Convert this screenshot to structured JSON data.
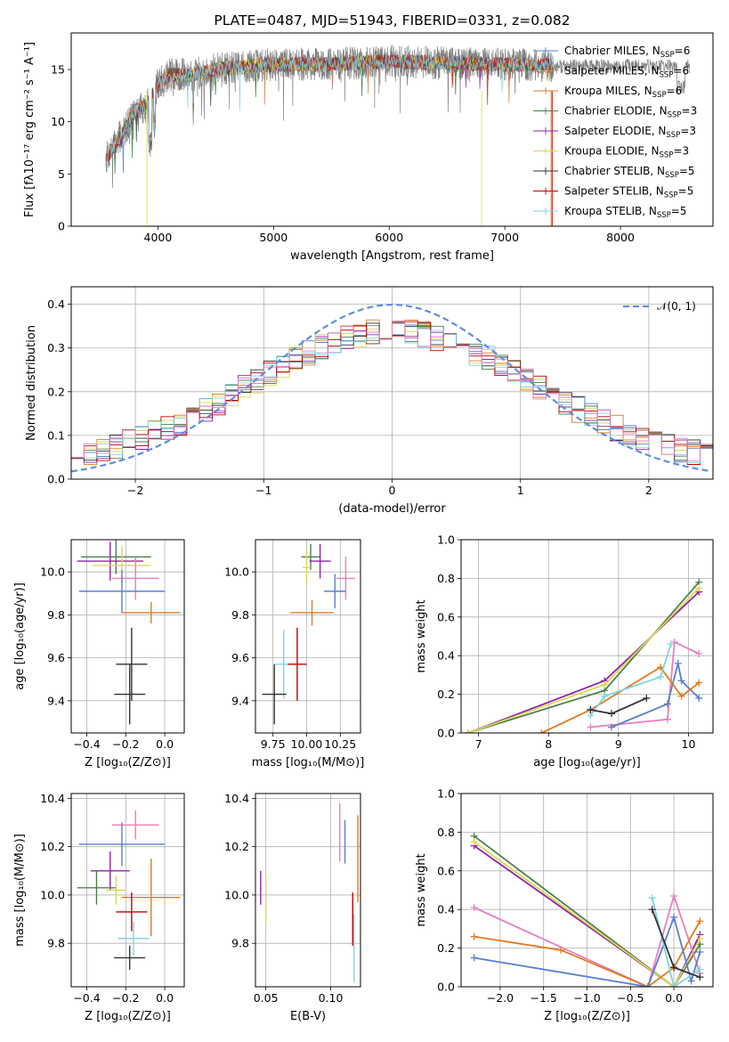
{
  "chart_data": [
    {
      "id": "spectrum",
      "type": "line",
      "title": "PLATE=0487, MJD=51943, FIBERID=0331, z=0.082",
      "xlabel": "wavelength [Angstrom, rest frame]",
      "ylabel": "Flux [fλ10⁻¹⁷ erg cm⁻² s⁻¹ A⁻¹]",
      "xlim": [
        3250,
        8800
      ],
      "ylim": [
        0,
        18.5
      ],
      "xticks": [
        4000,
        5000,
        6000,
        7000,
        8000
      ],
      "yticks": [
        0,
        5,
        10,
        15
      ],
      "grid": false,
      "legend_position": "right",
      "data_color": "#808080",
      "model_colors": [
        "#4878cf",
        "#dd8452",
        "#e87a2a",
        "#2e7d32",
        "#8e24aa",
        "#e2e84a",
        "#444444",
        "#c62828",
        "#80d4e0"
      ],
      "legend": [
        {
          "label": "Chabrier MILES, N",
          "sub": "SSP",
          "eq": "=6",
          "color": "#5a7fd0"
        },
        {
          "label": "Salpeter MILES, N",
          "sub": "SSP",
          "eq": "=6",
          "color": "#e89a6a"
        },
        {
          "label": "Kroupa MILES, N",
          "sub": "SSP",
          "eq": "=6",
          "color": "#e07b1f"
        },
        {
          "label": "Chabrier ELODIE, N",
          "sub": "SSP",
          "eq": "=3",
          "color": "#4f7f4f"
        },
        {
          "label": "Salpeter ELODIE, N",
          "sub": "SSP",
          "eq": "=3",
          "color": "#8e24aa"
        },
        {
          "label": "Kroupa ELODIE, N",
          "sub": "SSP",
          "eq": "=3",
          "color": "#dada50"
        },
        {
          "label": "Chabrier STELIB, N",
          "sub": "SSP",
          "eq": "=5",
          "color": "#333333"
        },
        {
          "label": "Salpeter STELIB, N",
          "sub": "SSP",
          "eq": "=5",
          "color": "#c00000"
        },
        {
          "label": "Kroupa STELIB, N",
          "sub": "SSP",
          "eq": "=5",
          "color": "#7fd1dd"
        }
      ],
      "continuum_anchors": {
        "x": [
          3550,
          3700,
          3800,
          3900,
          4000,
          4100,
          4300,
          4500,
          5000,
          5500,
          6000,
          6500,
          7000,
          7400
        ],
        "y": [
          6.5,
          9.0,
          11.0,
          11.5,
          13.5,
          14.5,
          14.5,
          15.0,
          15.5,
          15.5,
          15.8,
          15.6,
          15.5,
          15.4
        ]
      }
    },
    {
      "id": "residuals",
      "type": "histogram",
      "xlabel": "(data-model)/error",
      "ylabel": "Normed distribution",
      "xlim": [
        -2.5,
        2.5
      ],
      "ylim": [
        0,
        0.44
      ],
      "xticks": [
        -2,
        -1,
        0,
        1,
        2
      ],
      "yticks": [
        0.0,
        0.1,
        0.2,
        0.3,
        0.4
      ],
      "grid": true,
      "legend_position": "top-right",
      "legend": [
        {
          "label": "𝒩(0, 1)",
          "color": "#5f8fd8",
          "style": "dashed"
        }
      ],
      "normal": {
        "mean": 0,
        "sigma": 1
      }
    },
    {
      "id": "age_vs_Z",
      "type": "errorbar",
      "xlabel": "Z [log₁₀(Z/Z⊙)]",
      "ylabel": "age  [log₁₀(age/yr)]",
      "xlim": [
        -0.48,
        0.1
      ],
      "ylim": [
        9.25,
        10.15
      ],
      "xticks": [
        -0.4,
        -0.2,
        0.0
      ],
      "yticks": [
        9.4,
        9.6,
        9.8,
        10.0
      ],
      "grid": true,
      "points": [
        {
          "x": -0.25,
          "y": 10.07,
          "xerr": 0.18,
          "yerr": 0.08,
          "color": "#4f7f4f"
        },
        {
          "x": -0.28,
          "y": 10.05,
          "xerr": 0.17,
          "yerr": 0.09,
          "color": "#8e24aa"
        },
        {
          "x": -0.22,
          "y": 10.03,
          "xerr": 0.15,
          "yerr": 0.09,
          "color": "#dada50"
        },
        {
          "x": -0.15,
          "y": 9.97,
          "xerr": 0.12,
          "yerr": 0.1,
          "color": "#e87fc0"
        },
        {
          "x": -0.22,
          "y": 9.91,
          "xerr": 0.22,
          "yerr": 0.1,
          "color": "#5a7fd0"
        },
        {
          "x": -0.07,
          "y": 9.81,
          "xerr": 0.15,
          "yerr": 0.05,
          "color": "#e07b1f"
        },
        {
          "x": -0.17,
          "y": 9.57,
          "xerr": 0.08,
          "yerr": 0.17,
          "color": "#333333"
        },
        {
          "x": -0.18,
          "y": 9.43,
          "xerr": 0.08,
          "yerr": 0.14,
          "color": "#333333"
        }
      ]
    },
    {
      "id": "age_vs_mass",
      "type": "errorbar",
      "xlabel": "mass [log₁₀(M/M⊙)]",
      "ylabel": "",
      "xlim": [
        9.62,
        10.4
      ],
      "ylim": [
        9.25,
        10.15
      ],
      "xticks": [
        9.75,
        10.0,
        10.25
      ],
      "xticklabels": [
        "9.75",
        "10.00",
        "10.25"
      ],
      "yticks": [
        9.4,
        9.6,
        9.8,
        10.0
      ],
      "grid": true,
      "points": [
        {
          "x": 10.03,
          "y": 10.07,
          "xerr": 0.07,
          "yerr": 0.06,
          "color": "#4f7f4f"
        },
        {
          "x": 10.1,
          "y": 10.05,
          "xerr": 0.08,
          "yerr": 0.08,
          "color": "#8e24aa"
        },
        {
          "x": 10.0,
          "y": 10.02,
          "xerr": 0.03,
          "yerr": 0.08,
          "color": "#dada50"
        },
        {
          "x": 10.29,
          "y": 9.97,
          "xerr": 0.07,
          "yerr": 0.1,
          "color": "#e87fc0"
        },
        {
          "x": 10.21,
          "y": 9.91,
          "xerr": 0.08,
          "yerr": 0.08,
          "color": "#5a7fd0"
        },
        {
          "x": 10.04,
          "y": 9.81,
          "xerr": 0.16,
          "yerr": 0.06,
          "color": "#e07b1f"
        },
        {
          "x": 9.83,
          "y": 9.57,
          "xerr": 0.07,
          "yerr": 0.16,
          "color": "#80d4e0"
        },
        {
          "x": 9.93,
          "y": 9.57,
          "xerr": 0.07,
          "yerr": 0.17,
          "color": "#c00000"
        },
        {
          "x": 9.76,
          "y": 9.43,
          "xerr": 0.09,
          "yerr": 0.14,
          "color": "#333333"
        }
      ]
    },
    {
      "id": "weight_vs_age",
      "type": "line",
      "xlabel": "age  [log₁₀(age/yr)]",
      "ylabel": "mass weight",
      "xlim": [
        6.75,
        10.35
      ],
      "ylim": [
        0,
        1
      ],
      "xticks": [
        7,
        8,
        9,
        10
      ],
      "yticks": [
        0.0,
        0.2,
        0.4,
        0.6,
        0.8,
        1.0
      ],
      "grid": true,
      "series": [
        {
          "color": "#4f7f4f",
          "x": [
            6.85,
            8.8,
            10.15
          ],
          "y": [
            0.0,
            0.22,
            0.78
          ]
        },
        {
          "color": "#8e24aa",
          "x": [
            6.85,
            8.8,
            10.15
          ],
          "y": [
            0.0,
            0.27,
            0.73
          ]
        },
        {
          "color": "#dada50",
          "x": [
            6.85,
            8.8,
            10.15
          ],
          "y": [
            0.0,
            0.25,
            0.75
          ]
        },
        {
          "color": "#e87fc0",
          "x": [
            8.6,
            9.7,
            9.8,
            10.15
          ],
          "y": [
            0.03,
            0.07,
            0.47,
            0.41
          ]
        },
        {
          "color": "#5a7fd0",
          "x": [
            8.9,
            9.7,
            9.85,
            9.9,
            10.15
          ],
          "y": [
            0.03,
            0.15,
            0.36,
            0.27,
            0.18
          ]
        },
        {
          "color": "#e07b1f",
          "x": [
            7.9,
            8.6,
            9.6,
            9.9,
            10.15
          ],
          "y": [
            0.0,
            0.12,
            0.34,
            0.19,
            0.26
          ]
        },
        {
          "color": "#80d4e0",
          "x": [
            8.6,
            8.8,
            9.6,
            9.75
          ],
          "y": [
            0.09,
            0.19,
            0.29,
            0.46
          ]
        },
        {
          "color": "#333333",
          "x": [
            8.6,
            8.9,
            9.4
          ],
          "y": [
            0.12,
            0.1,
            0.18
          ]
        }
      ]
    },
    {
      "id": "mass_vs_Z",
      "type": "errorbar",
      "xlabel": "Z [log₁₀(Z/Z⊙)]",
      "ylabel": "mass [log₁₀(M/M⊙)]",
      "xlim": [
        -0.48,
        0.1
      ],
      "ylim": [
        9.62,
        10.42
      ],
      "xticks": [
        -0.4,
        -0.2,
        0.0
      ],
      "yticks": [
        9.8,
        10.0,
        10.2,
        10.4
      ],
      "grid": true,
      "points": [
        {
          "x": -0.15,
          "y": 10.29,
          "xerr": 0.12,
          "yerr": 0.06,
          "color": "#e87fc0"
        },
        {
          "x": -0.22,
          "y": 10.21,
          "xerr": 0.22,
          "yerr": 0.09,
          "color": "#5a7fd0"
        },
        {
          "x": -0.28,
          "y": 10.1,
          "xerr": 0.1,
          "yerr": 0.08,
          "color": "#8e24aa"
        },
        {
          "x": -0.35,
          "y": 10.03,
          "xerr": 0.1,
          "yerr": 0.07,
          "color": "#4f7f4f"
        },
        {
          "x": -0.25,
          "y": 10.02,
          "xerr": 0.05,
          "yerr": 0.06,
          "color": "#dada50"
        },
        {
          "x": -0.07,
          "y": 9.99,
          "xerr": 0.15,
          "yerr": 0.16,
          "color": "#e07b1f"
        },
        {
          "x": -0.17,
          "y": 9.93,
          "xerr": 0.08,
          "yerr": 0.08,
          "color": "#c00000"
        },
        {
          "x": -0.16,
          "y": 9.82,
          "xerr": 0.08,
          "yerr": 0.07,
          "color": "#80d4e0"
        },
        {
          "x": -0.18,
          "y": 9.74,
          "xerr": 0.08,
          "yerr": 0.05,
          "color": "#333333"
        }
      ]
    },
    {
      "id": "mass_vs_ebv",
      "type": "errorbar",
      "xlabel": "E(B-V)",
      "ylabel": "",
      "xlim": [
        0.042,
        0.123
      ],
      "ylim": [
        9.62,
        10.42
      ],
      "xticks": [
        0.05,
        0.1
      ],
      "xticklabels": [
        "0.05",
        "0.10"
      ],
      "yticks": [
        9.8,
        10.0,
        10.2,
        10.4
      ],
      "grid": true,
      "points": [
        {
          "x": 0.046,
          "y": 10.03,
          "xerr": 0,
          "yerr": 0.07,
          "color": "#8e24aa"
        },
        {
          "x": 0.05,
          "y": 9.98,
          "xerr": 0,
          "yerr": 0.1,
          "color": "#dada50"
        },
        {
          "x": 0.107,
          "y": 10.26,
          "xerr": 0,
          "yerr": 0.12,
          "color": "#e87fc0"
        },
        {
          "x": 0.111,
          "y": 10.22,
          "xerr": 0,
          "yerr": 0.09,
          "color": "#5a7fd0"
        },
        {
          "x": 0.121,
          "y": 10.15,
          "xerr": 0,
          "yerr": 0.18,
          "color": "#e07b1f"
        },
        {
          "x": 0.117,
          "y": 9.9,
          "xerr": 0,
          "yerr": 0.11,
          "color": "#c00000"
        },
        {
          "x": 0.118,
          "y": 9.78,
          "xerr": 0,
          "yerr": 0.14,
          "color": "#80d4e0"
        }
      ]
    },
    {
      "id": "weight_vs_Z",
      "type": "line",
      "xlabel": "Z [log₁₀(Z/Z⊙)]",
      "ylabel": "mass weight",
      "xlim": [
        -2.45,
        0.45
      ],
      "ylim": [
        0,
        1
      ],
      "xticks": [
        -2.0,
        -1.5,
        -1.0,
        -0.5,
        0.0
      ],
      "yticks": [
        0.0,
        0.2,
        0.4,
        0.6,
        0.8,
        1.0
      ],
      "grid": true,
      "series": [
        {
          "color": "#4f7f4f",
          "x": [
            -2.3,
            0.0,
            0.3
          ],
          "y": [
            0.78,
            0.0,
            0.22
          ]
        },
        {
          "color": "#8e24aa",
          "x": [
            -2.3,
            0.0,
            0.3
          ],
          "y": [
            0.73,
            0.0,
            0.27
          ]
        },
        {
          "color": "#dada50",
          "x": [
            -2.3,
            0.0,
            0.3
          ],
          "y": [
            0.75,
            0.0,
            0.25
          ]
        },
        {
          "color": "#e87fc0",
          "x": [
            -2.3,
            -0.3,
            0.0,
            0.3
          ],
          "y": [
            0.41,
            0.0,
            0.47,
            0.07
          ]
        },
        {
          "color": "#e07b1f",
          "x": [
            -2.3,
            -1.3,
            -0.3,
            0.0,
            0.3
          ],
          "y": [
            0.26,
            0.19,
            0.0,
            0.1,
            0.34
          ]
        },
        {
          "color": "#5a7fd0",
          "x": [
            -2.3,
            -0.3,
            0.0,
            0.2,
            0.3
          ],
          "y": [
            0.15,
            0.0,
            0.36,
            0.03,
            0.18
          ]
        },
        {
          "color": "#80d4e0",
          "x": [
            -0.25,
            0.0,
            0.3
          ],
          "y": [
            0.46,
            0.0,
            0.09
          ]
        },
        {
          "color": "#333333",
          "x": [
            -0.25,
            0.0,
            0.3
          ],
          "y": [
            0.4,
            0.1,
            0.05
          ]
        }
      ]
    }
  ]
}
